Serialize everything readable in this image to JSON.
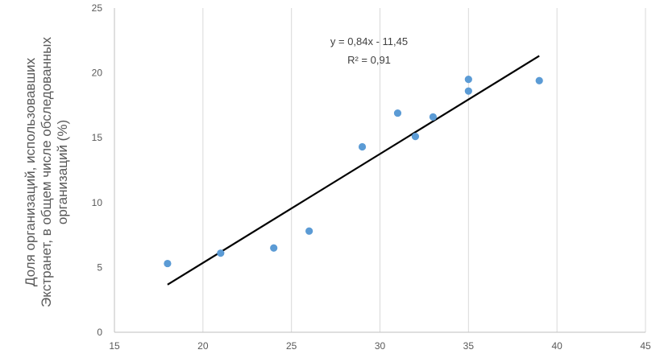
{
  "chart_data": {
    "type": "scatter",
    "xlim": [
      15,
      45
    ],
    "ylim": [
      0,
      25
    ],
    "xticks": [
      "15",
      "20",
      "25",
      "30",
      "35",
      "40",
      "45"
    ],
    "yticks": [
      "0",
      "5",
      "10",
      "15",
      "20",
      "25"
    ],
    "ylabel_lines": [
      "Доля организаций, использовавших",
      "Экстранет, в общем числе обследованных",
      "организаций (%)"
    ],
    "grid": "vertical",
    "series": [
      {
        "color": "#5b9bd5",
        "points": [
          {
            "x": 18,
            "y": 5.3
          },
          {
            "x": 21,
            "y": 6.1
          },
          {
            "x": 24,
            "y": 6.5
          },
          {
            "x": 26,
            "y": 7.8
          },
          {
            "x": 29,
            "y": 14.3
          },
          {
            "x": 31,
            "y": 16.9
          },
          {
            "x": 32,
            "y": 15.1
          },
          {
            "x": 33,
            "y": 16.6
          },
          {
            "x": 35,
            "y": 18.6
          },
          {
            "x": 35,
            "y": 19.5
          },
          {
            "x": 39,
            "y": 19.4
          }
        ]
      }
    ],
    "trendline": {
      "color": "#000000",
      "slope": 0.84,
      "intercept": -11.45,
      "x_range": [
        18,
        39
      ],
      "equation": "y = 0,84x - 11,45",
      "r2": "R² = 0,91"
    }
  }
}
